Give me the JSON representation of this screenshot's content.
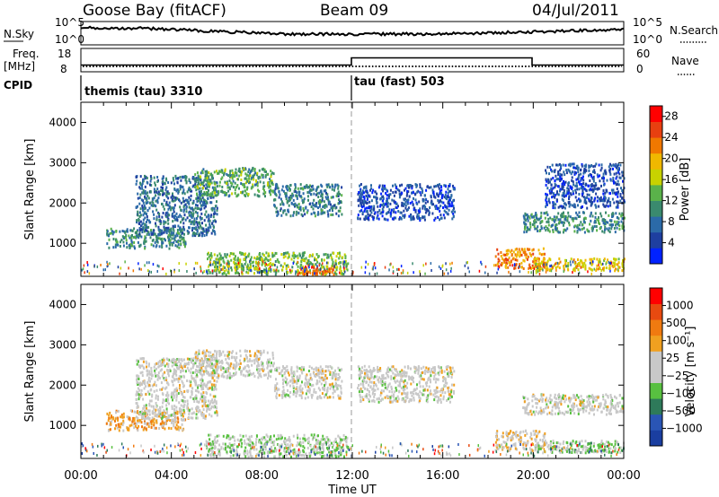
{
  "header": {
    "station": "Goose Bay (fitACF)",
    "beam": "Beam 09",
    "date": "04/Jul/2011"
  },
  "summary": {
    "nsky_label": "N.Sky",
    "nsky_ticks": [
      "10^5",
      "10^0"
    ],
    "nsearch_label": "N.Search",
    "nsearch_ticks": [
      "10^5",
      "10^0"
    ],
    "freq_label_1": "Freq.",
    "freq_label_2": "[MHz]",
    "freq_ticks": [
      "18",
      "8"
    ],
    "nave_label": "Nave",
    "nave_ticks": [
      "60",
      "0"
    ],
    "cpid_label": "CPID",
    "cpid_segments": [
      "themis (tau) 3310",
      "tau (fast) 503"
    ]
  },
  "x_axis": {
    "label": "Time UT",
    "ticks": [
      "00:00",
      "04:00",
      "08:00",
      "12:00",
      "16:00",
      "20:00",
      "00:00"
    ]
  },
  "colors": {
    "power_scale": [
      "#0022ff",
      "#1e3fa0",
      "#2b6aa8",
      "#3a8a6e",
      "#5ab24a",
      "#c8d200",
      "#f0b800",
      "#f07800",
      "#e84010",
      "#ff0000"
    ],
    "velocity_scale": [
      "#1a3ea0",
      "#2a55b5",
      "#2e7a5a",
      "#58c040",
      "#c8c8c8",
      "#c8c8c8",
      "#f0a020",
      "#f07a10",
      "#e84a10",
      "#ff0000"
    ]
  },
  "chart_data": [
    {
      "type": "heatmap",
      "title": "",
      "xlabel": "",
      "ylabel": "Slant Range [km]",
      "x_range_hours": [
        0,
        24
      ],
      "ylim": [
        180,
        4500
      ],
      "yticks": [
        "1000",
        "2000",
        "3000",
        "4000"
      ],
      "colorbar": {
        "label": "Power [dB]",
        "ticks": [
          "4",
          "8",
          "12",
          "16",
          "20",
          "24",
          "28"
        ],
        "range": [
          0,
          30
        ]
      },
      "echo_regions": [
        {
          "t": [
            1.1,
            4.6
          ],
          "r": [
            900,
            1400
          ],
          "value": 10
        },
        {
          "t": [
            2.4,
            6.0
          ],
          "r": [
            1200,
            2700
          ],
          "value": 8
        },
        {
          "t": [
            5.0,
            8.5
          ],
          "r": [
            2200,
            2900
          ],
          "value": 12
        },
        {
          "t": [
            8.5,
            11.5
          ],
          "r": [
            1700,
            2500
          ],
          "value": 9
        },
        {
          "t": [
            12.2,
            16.5
          ],
          "r": [
            1600,
            2500
          ],
          "value": 5
        },
        {
          "t": [
            5.5,
            11.8
          ],
          "r": [
            250,
            800
          ],
          "value": 14
        },
        {
          "t": [
            9.5,
            11.5
          ],
          "r": [
            250,
            450
          ],
          "value": 24
        },
        {
          "t": [
            18.3,
            20.5
          ],
          "r": [
            400,
            900
          ],
          "value": 22
        },
        {
          "t": [
            20.0,
            24.0
          ],
          "r": [
            350,
            650
          ],
          "value": 18
        },
        {
          "t": [
            19.5,
            24.0
          ],
          "r": [
            1300,
            1800
          ],
          "value": 10
        },
        {
          "t": [
            20.5,
            24.0
          ],
          "r": [
            1900,
            3000
          ],
          "value": 5
        }
      ]
    },
    {
      "type": "heatmap",
      "title": "",
      "xlabel": "Time UT",
      "ylabel": "Slant Range [km]",
      "x_range_hours": [
        0,
        24
      ],
      "ylim": [
        180,
        4500
      ],
      "yticks": [
        "1000",
        "2000",
        "3000",
        "4000"
      ],
      "colorbar": {
        "label": "Velocity [m s⁻¹]",
        "ticks": [
          "1000",
          "500",
          "100",
          "25",
          "−25",
          "−100",
          "−500",
          "−1000"
        ],
        "range": [
          -1000,
          1000
        ]
      },
      "echo_regions": [
        {
          "t": [
            1.1,
            4.6
          ],
          "r": [
            900,
            1400
          ],
          "value": 300
        },
        {
          "t": [
            2.4,
            6.0
          ],
          "r": [
            1200,
            2700
          ],
          "value": 0
        },
        {
          "t": [
            5.0,
            8.5
          ],
          "r": [
            2200,
            2900
          ],
          "value": 0
        },
        {
          "t": [
            8.5,
            11.5
          ],
          "r": [
            1700,
            2500
          ],
          "value": 0
        },
        {
          "t": [
            12.2,
            16.5
          ],
          "r": [
            1600,
            2500
          ],
          "value": 0
        },
        {
          "t": [
            5.5,
            11.8
          ],
          "r": [
            250,
            800
          ],
          "value": -150
        },
        {
          "t": [
            18.3,
            20.5
          ],
          "r": [
            400,
            900
          ],
          "value": 150
        },
        {
          "t": [
            20.0,
            24.0
          ],
          "r": [
            350,
            650
          ],
          "value": -200
        },
        {
          "t": [
            19.5,
            24.0
          ],
          "r": [
            1300,
            1800
          ],
          "value": 0
        }
      ]
    }
  ]
}
